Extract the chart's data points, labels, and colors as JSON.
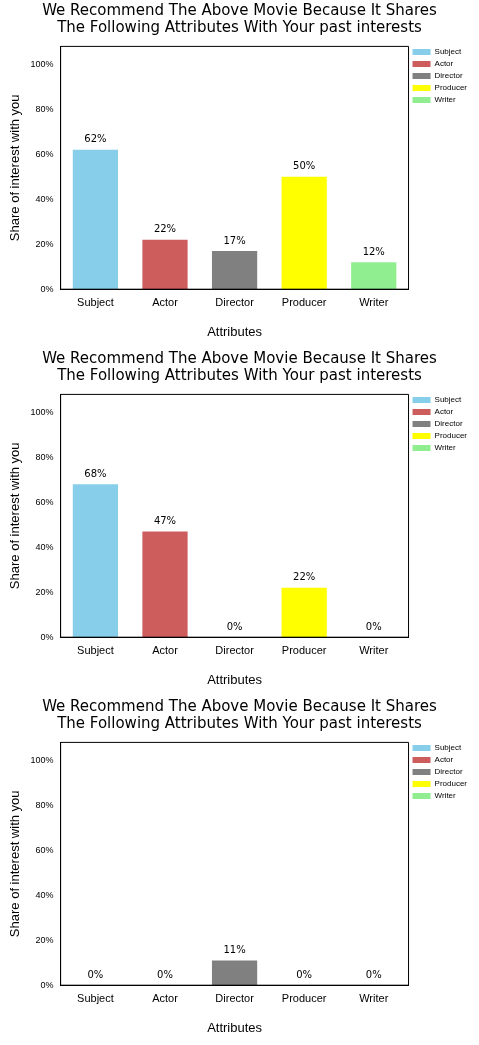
{
  "chart_data": [
    {
      "type": "bar",
      "title": "We Recommend The Above Movie Because It Shares The Following Attributes With Your past interests",
      "xlabel": "Attributes",
      "ylabel": "Share of interest with you",
      "categories": [
        "Subject",
        "Actor",
        "Director",
        "Producer",
        "Writer"
      ],
      "series": [
        {
          "name": "Subject",
          "color": "#87ceeb",
          "values": [
            62,
            null,
            null,
            null,
            null
          ],
          "value_labels": [
            "62%",
            null,
            null,
            null,
            null
          ]
        },
        {
          "name": "Actor",
          "color": "#cd5c5c",
          "values": [
            null,
            22,
            null,
            null,
            null
          ],
          "value_labels": [
            null,
            "22%",
            null,
            null,
            null
          ]
        },
        {
          "name": "Director",
          "color": "#808080",
          "values": [
            null,
            null,
            17,
            null,
            null
          ],
          "value_labels": [
            null,
            null,
            "17%",
            null,
            null
          ]
        },
        {
          "name": "Producer",
          "color": "#ffff00",
          "values": [
            null,
            null,
            null,
            50,
            null
          ],
          "value_labels": [
            null,
            null,
            null,
            "50%",
            null
          ]
        },
        {
          "name": "Writer",
          "color": "#90ee90",
          "values": [
            null,
            null,
            null,
            null,
            12
          ],
          "value_labels": [
            null,
            null,
            null,
            null,
            "12%"
          ]
        }
      ],
      "ylim": [
        0,
        108
      ],
      "yticks": [
        {
          "value": 0,
          "label": "0%"
        },
        {
          "value": 20,
          "label": "20%"
        },
        {
          "value": 40,
          "label": "40%"
        },
        {
          "value": 60,
          "label": "60%"
        },
        {
          "value": 80,
          "label": "80%"
        },
        {
          "value": 100,
          "label": "100%"
        }
      ],
      "legend": "top right"
    },
    {
      "type": "bar",
      "title": "We Recommend The Above Movie Because It Shares The Following Attributes With Your past interests",
      "xlabel": "Attributes",
      "ylabel": "Share of interest with you",
      "categories": [
        "Subject",
        "Actor",
        "Director",
        "Producer",
        "Writer"
      ],
      "series": [
        {
          "name": "Subject",
          "color": "#87ceeb",
          "values": [
            68,
            null,
            null,
            null,
            null
          ],
          "value_labels": [
            "68%",
            null,
            null,
            null,
            null
          ]
        },
        {
          "name": "Actor",
          "color": "#cd5c5c",
          "values": [
            null,
            47,
            null,
            null,
            null
          ],
          "value_labels": [
            null,
            "47%",
            null,
            null,
            null
          ]
        },
        {
          "name": "Director",
          "color": "#808080",
          "values": [
            null,
            null,
            0,
            null,
            null
          ],
          "value_labels": [
            null,
            null,
            "0%",
            null,
            null
          ]
        },
        {
          "name": "Producer",
          "color": "#ffff00",
          "values": [
            null,
            null,
            null,
            22,
            null
          ],
          "value_labels": [
            null,
            null,
            null,
            "22%",
            null
          ]
        },
        {
          "name": "Writer",
          "color": "#90ee90",
          "values": [
            null,
            null,
            null,
            null,
            0
          ],
          "value_labels": [
            null,
            null,
            null,
            null,
            "0%"
          ]
        }
      ],
      "ylim": [
        0,
        108
      ],
      "yticks": [
        {
          "value": 0,
          "label": "0%"
        },
        {
          "value": 20,
          "label": "20%"
        },
        {
          "value": 40,
          "label": "40%"
        },
        {
          "value": 60,
          "label": "60%"
        },
        {
          "value": 80,
          "label": "80%"
        },
        {
          "value": 100,
          "label": "100%"
        }
      ],
      "legend": "top right"
    },
    {
      "type": "bar",
      "title": "We Recommend The Above Movie Because It Shares The Following Attributes With Your past interests",
      "xlabel": "Attributes",
      "ylabel": "Share of interest with you",
      "categories": [
        "Subject",
        "Actor",
        "Director",
        "Producer",
        "Writer"
      ],
      "series": [
        {
          "name": "Subject",
          "color": "#87ceeb",
          "values": [
            0,
            null,
            null,
            null,
            null
          ],
          "value_labels": [
            "0%",
            null,
            null,
            null,
            null
          ]
        },
        {
          "name": "Actor",
          "color": "#cd5c5c",
          "values": [
            null,
            0,
            null,
            null,
            null
          ],
          "value_labels": [
            null,
            "0%",
            null,
            null,
            null
          ]
        },
        {
          "name": "Director",
          "color": "#808080",
          "values": [
            null,
            null,
            11,
            null,
            null
          ],
          "value_labels": [
            null,
            null,
            "11%",
            null,
            null
          ]
        },
        {
          "name": "Producer",
          "color": "#ffff00",
          "values": [
            null,
            null,
            null,
            0,
            null
          ],
          "value_labels": [
            null,
            null,
            null,
            "0%",
            null
          ]
        },
        {
          "name": "Writer",
          "color": "#90ee90",
          "values": [
            null,
            null,
            null,
            null,
            0
          ],
          "value_labels": [
            null,
            null,
            null,
            null,
            "0%"
          ]
        }
      ],
      "ylim": [
        0,
        108
      ],
      "yticks": [
        {
          "value": 0,
          "label": "0%"
        },
        {
          "value": 20,
          "label": "20%"
        },
        {
          "value": 40,
          "label": "40%"
        },
        {
          "value": 60,
          "label": "60%"
        },
        {
          "value": 80,
          "label": "80%"
        },
        {
          "value": 100,
          "label": "100%"
        }
      ],
      "legend": "top right"
    }
  ]
}
